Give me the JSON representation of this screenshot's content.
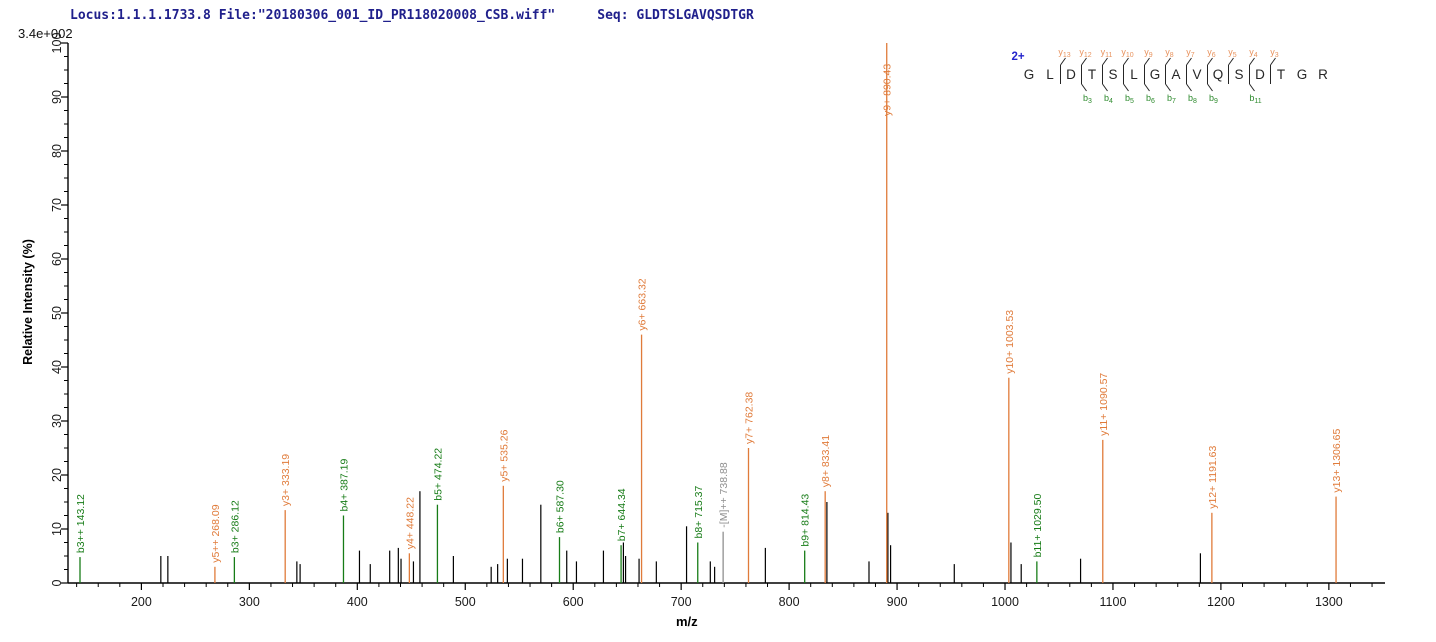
{
  "header": {
    "locus_file": "Locus:1.1.1.1733.8 File:\"20180306_001_ID_PR118020008_CSB.wiff\"",
    "sequence_summary": "Seq: GLDTSLGAVQSDTGR"
  },
  "y_axis": {
    "scale_note": "3.4e+002",
    "title": "Relative  Intensity (%)",
    "ticks": [
      0,
      10,
      20,
      30,
      40,
      50,
      60,
      70,
      80,
      90,
      100
    ],
    "minor_step": 2.5,
    "range": [
      0,
      100
    ]
  },
  "x_axis": {
    "title": "m/z",
    "ticks": [
      200,
      300,
      400,
      500,
      600,
      700,
      800,
      900,
      1000,
      1100,
      1200,
      1300
    ],
    "minor_step": 20,
    "range": [
      132,
      1352
    ]
  },
  "colors": {
    "b_ion": "#177c17",
    "y_ion": "#e07b3a",
    "precursor": "#8f8f8f",
    "unassigned_peak": "#000000",
    "axis": "#000000",
    "header_text": "#20208c",
    "charge_label": "#2323cc",
    "seq_letter": "#262626",
    "seq_y_label": "#e8935e",
    "seq_b_label": "#2e8b2e"
  },
  "chart_data": {
    "type": "bar",
    "subtype": "ms2-centroid-mass-spectrum",
    "title": "",
    "xlabel": "m/z",
    "ylabel": "Relative  Intensity (%)",
    "xlim": [
      132,
      1352
    ],
    "ylim": [
      0,
      100
    ],
    "intensity_scale": "3.4e+002",
    "precursor_charge": "2+",
    "peptide": {
      "residues": [
        "G",
        "L",
        "D",
        "T",
        "S",
        "L",
        "G",
        "A",
        "V",
        "Q",
        "S",
        "D",
        "T",
        "G",
        "R"
      ],
      "cleavages": [
        {
          "after": 2,
          "y": "y13"
        },
        {
          "after": 3,
          "y": "y12",
          "b": "b3"
        },
        {
          "after": 4,
          "y": "y11",
          "b": "b4"
        },
        {
          "after": 5,
          "y": "y10",
          "b": "b5"
        },
        {
          "after": 6,
          "y": "y9",
          "b": "b6"
        },
        {
          "after": 7,
          "y": "y8",
          "b": "b7"
        },
        {
          "after": 8,
          "y": "y7",
          "b": "b8"
        },
        {
          "after": 9,
          "y": "y6",
          "b": "b9"
        },
        {
          "after": 10,
          "y": "y5"
        },
        {
          "after": 11,
          "y": "y4",
          "b": "b11"
        },
        {
          "after": 12,
          "y": "y3"
        }
      ]
    },
    "annotated_peaks": [
      {
        "mz": 143.12,
        "intensity": 4.8,
        "label": "b3++ 143.12",
        "ion": "b"
      },
      {
        "mz": 268.09,
        "intensity": 3.0,
        "label": "y5++ 268.09",
        "ion": "y"
      },
      {
        "mz": 286.12,
        "intensity": 4.8,
        "label": "b3+ 286.12",
        "ion": "b"
      },
      {
        "mz": 333.19,
        "intensity": 13.5,
        "label": "y3+ 333.19",
        "ion": "y"
      },
      {
        "mz": 387.19,
        "intensity": 12.5,
        "label": "b4+ 387.19",
        "ion": "b"
      },
      {
        "mz": 448.22,
        "intensity": 5.5,
        "label": "y4+ 448.22",
        "ion": "y"
      },
      {
        "mz": 474.22,
        "intensity": 14.5,
        "label": "b5+ 474.22",
        "ion": "b"
      },
      {
        "mz": 535.26,
        "intensity": 18.0,
        "label": "y5+ 535.26",
        "ion": "y"
      },
      {
        "mz": 587.3,
        "intensity": 8.5,
        "label": "b6+ 587.30",
        "ion": "b"
      },
      {
        "mz": 644.34,
        "intensity": 7.0,
        "label": "b7+ 644.34",
        "ion": "b"
      },
      {
        "mz": 663.32,
        "intensity": 46.0,
        "label": "y6+ 663.32",
        "ion": "y"
      },
      {
        "mz": 715.37,
        "intensity": 7.5,
        "label": "b8+ 715.37",
        "ion": "b"
      },
      {
        "mz": 738.88,
        "intensity": 9.5,
        "label": "-[M]++ 738.88",
        "ion": "precursor"
      },
      {
        "mz": 762.38,
        "intensity": 25.0,
        "label": "y7+ 762.38",
        "ion": "y"
      },
      {
        "mz": 814.43,
        "intensity": 6.0,
        "label": "b9+ 814.43",
        "ion": "b"
      },
      {
        "mz": 833.41,
        "intensity": 17.0,
        "label": "y8+ 833.41",
        "ion": "y"
      },
      {
        "mz": 890.43,
        "intensity": 100.0,
        "label": "y9+ 890.43",
        "ion": "y"
      },
      {
        "mz": 1003.53,
        "intensity": 38.0,
        "label": "y10+ 1003.53",
        "ion": "y"
      },
      {
        "mz": 1029.5,
        "intensity": 4.0,
        "label": "b11+ 1029.50",
        "ion": "b"
      },
      {
        "mz": 1090.57,
        "intensity": 26.5,
        "label": "y11+ 1090.57",
        "ion": "y"
      },
      {
        "mz": 1191.63,
        "intensity": 13.0,
        "label": "y12+ 1191.63",
        "ion": "y"
      },
      {
        "mz": 1306.65,
        "intensity": 16.0,
        "label": "y13+ 1306.65",
        "ion": "y"
      }
    ],
    "unannotated_peaks": [
      [
        218,
        5.0
      ],
      [
        224.5,
        5.0
      ],
      [
        344,
        4.0
      ],
      [
        347,
        3.5
      ],
      [
        402,
        6.0
      ],
      [
        412,
        3.5
      ],
      [
        430,
        6.0
      ],
      [
        438,
        6.5
      ],
      [
        440.5,
        4.5
      ],
      [
        452,
        4.0
      ],
      [
        458,
        17.0
      ],
      [
        489,
        5.0
      ],
      [
        524,
        3.0
      ],
      [
        530,
        3.5
      ],
      [
        539,
        4.5
      ],
      [
        553,
        4.5
      ],
      [
        570,
        14.5
      ],
      [
        594,
        6.0
      ],
      [
        603,
        4.0
      ],
      [
        628,
        6.0
      ],
      [
        646.5,
        7.5
      ],
      [
        648.5,
        5.0
      ],
      [
        661,
        4.5
      ],
      [
        677,
        4.0
      ],
      [
        705,
        10.5
      ],
      [
        727,
        4.0
      ],
      [
        731,
        3.0
      ],
      [
        778,
        6.5
      ],
      [
        835,
        15.0
      ],
      [
        874,
        4.0
      ],
      [
        891.5,
        13.0
      ],
      [
        894,
        7.0
      ],
      [
        953,
        3.5
      ],
      [
        1005.5,
        7.5
      ],
      [
        1015,
        3.5
      ],
      [
        1070,
        4.5
      ],
      [
        1181,
        5.5
      ]
    ]
  }
}
